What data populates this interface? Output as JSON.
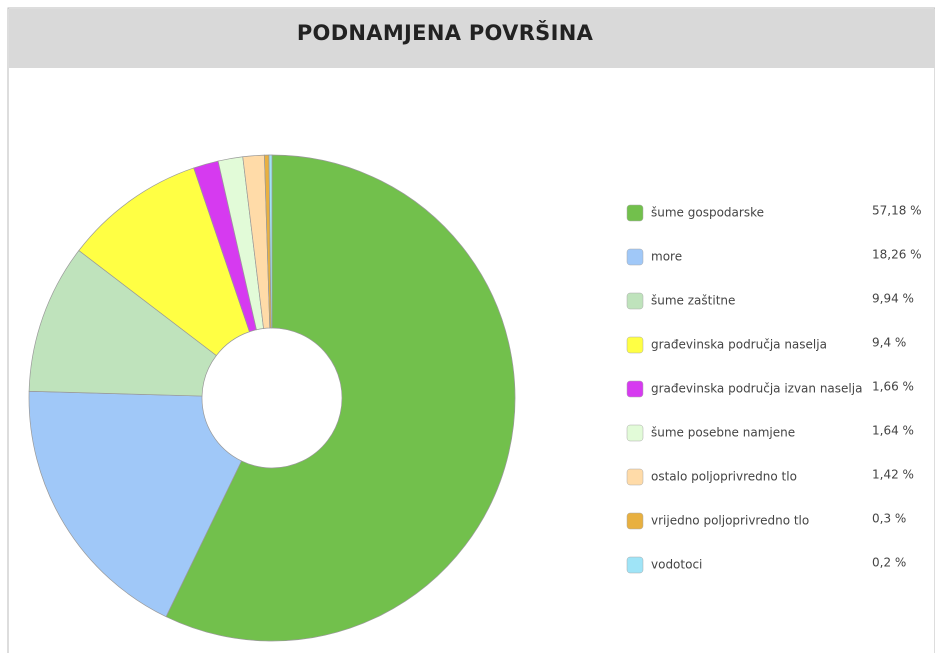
{
  "chart_data": {
    "type": "donut",
    "title": "PODNAMJENA POVRŠINA",
    "categories": [
      "šume gospodarske",
      "more",
      "šume zaštitne",
      "građevinska područja naselja",
      "građevinska područja izvan naselja",
      "šume posebne namjene",
      "ostalo poljoprivredno tlo",
      "vrijedno poljoprivredno tlo",
      "vodotoci"
    ],
    "values": [
      57.18,
      18.26,
      9.94,
      9.4,
      1.66,
      1.64,
      1.42,
      0.3,
      0.2
    ],
    "value_labels": [
      "57,18 %",
      "18,26 %",
      "9,94 %",
      "9,4 %",
      "1,66 %",
      "1,64 %",
      "1,42 %",
      "0,3 %",
      "0,2 %"
    ],
    "colors": [
      "#72c04c",
      "#a0c8f8",
      "#bfe3bc",
      "#ffff44",
      "#d63af0",
      "#e2fbd8",
      "#ffdba8",
      "#e8b040",
      "#9fe4f7"
    ],
    "legend": "right"
  }
}
